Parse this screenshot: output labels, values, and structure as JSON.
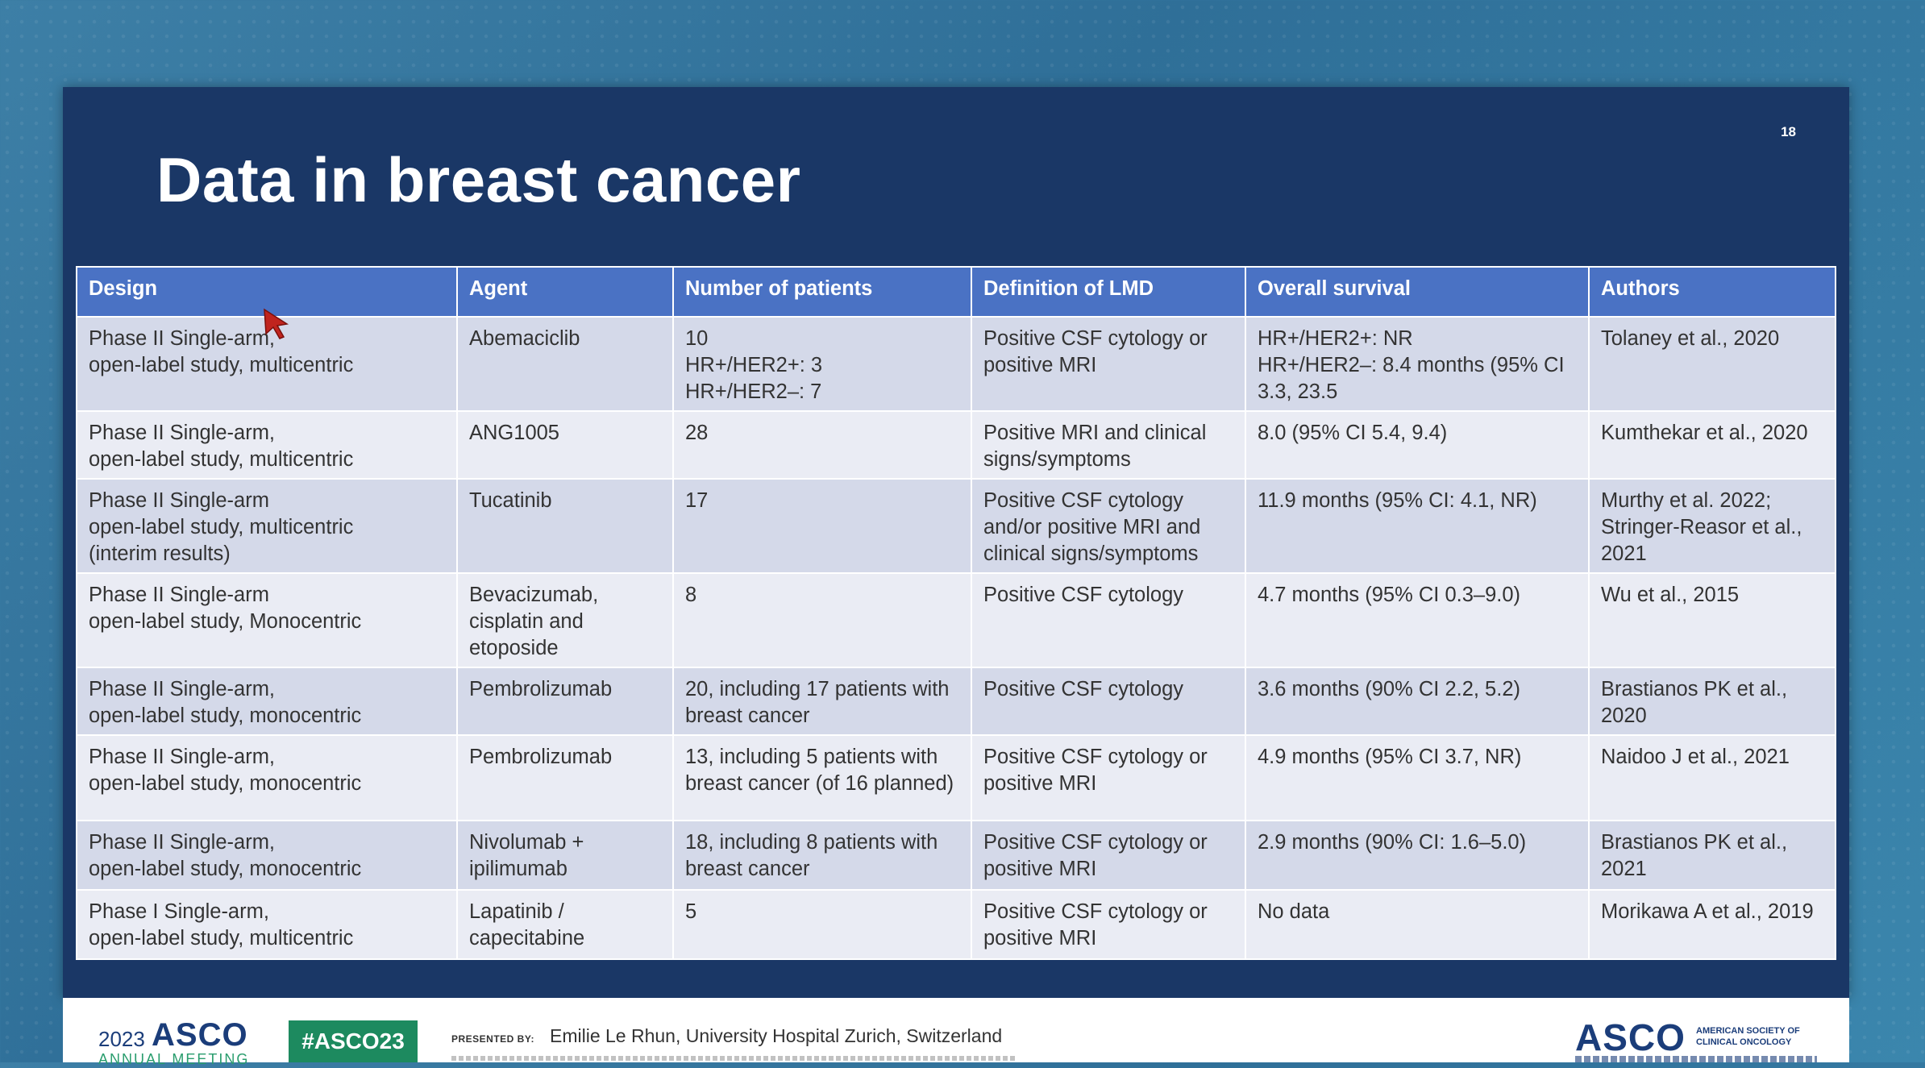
{
  "slide": {
    "title": "Data in breast cancer",
    "page_number": "18"
  },
  "table": {
    "headers": [
      "Design",
      "Agent",
      "Number of patients",
      "Definition of LMD",
      "Overall survival",
      "Authors"
    ],
    "rows": [
      [
        "Phase II Single-arm,\nopen-label study, multicentric",
        "Abemaciclib",
        "10\nHR+/HER2+: 3\nHR+/HER2–: 7",
        "Positive CSF cytology or positive MRI",
        "HR+/HER2+: NR\nHR+/HER2–: 8.4 months (95% CI 3.3, 23.5",
        "Tolaney et al., 2020"
      ],
      [
        "Phase II Single-arm,\nopen-label study, multicentric",
        "ANG1005",
        "28",
        "Positive MRI and clinical signs/symptoms",
        "8.0 (95% CI 5.4, 9.4)",
        "Kumthekar et al., 2020"
      ],
      [
        "Phase II Single-arm\nopen-label study, multicentric\n(interim results)",
        "Tucatinib",
        "17",
        "Positive CSF cytology and/or positive MRI and clinical signs/symptoms",
        "11.9 months (95% CI: 4.1, NR)",
        "Murthy et al. 2022; Stringer-Reasor et al., 2021"
      ],
      [
        "Phase II Single-arm\nopen-label study, Monocentric",
        "Bevacizumab, cisplatin and etoposide",
        "8",
        "Positive CSF cytology",
        "4.7 months (95% CI 0.3–9.0)",
        "Wu et al., 2015"
      ],
      [
        "Phase II Single-arm,\nopen-label study, monocentric",
        "Pembrolizumab",
        "20, including 17 patients with breast cancer",
        "Positive CSF cytology",
        "3.6 months (90% CI 2.2, 5.2)",
        "Brastianos PK et al., 2020"
      ],
      [
        "Phase II Single-arm,\nopen-label study, monocentric",
        "Pembrolizumab",
        "13, including 5 patients with breast cancer (of 16 planned)",
        "Positive CSF cytology or positive MRI",
        "4.9 months (95% CI 3.7, NR)",
        "Naidoo J et al., 2021"
      ],
      [
        "Phase II Single-arm,\nopen-label study, monocentric",
        "Nivolumab + ipilimumab",
        "18, including 8 patients with breast cancer",
        "Positive CSF cytology or positive MRI",
        "2.9 months (90% CI: 1.6–5.0)",
        "Brastianos PK et al., 2021"
      ],
      [
        "Phase I Single-arm,\nopen-label study, multicentric",
        "Lapatinib / capecitabine",
        "5",
        "Positive CSF cytology or positive MRI",
        "No data",
        "Morikawa A et al., 2019"
      ]
    ]
  },
  "footer": {
    "year": "2023",
    "asco_left": "ASCO",
    "annual_meeting": "ANNUAL MEETING",
    "hashtag": "#ASCO23",
    "presented_by_label": "PRESENTED BY:",
    "presenter": "Emilie Le Rhun, University Hospital Zurich, Switzerland",
    "asco_right": "ASCO",
    "asco_org_name": "American Society of Clinical Oncology"
  },
  "colors": {
    "slide_background": "#1a3766",
    "header_row": "#4a72c4",
    "row_odd": "#d4d9e9",
    "row_even": "#eaecf4",
    "hashtag_green": "#1d8a5f",
    "asco_blue": "#1b3d7a"
  }
}
